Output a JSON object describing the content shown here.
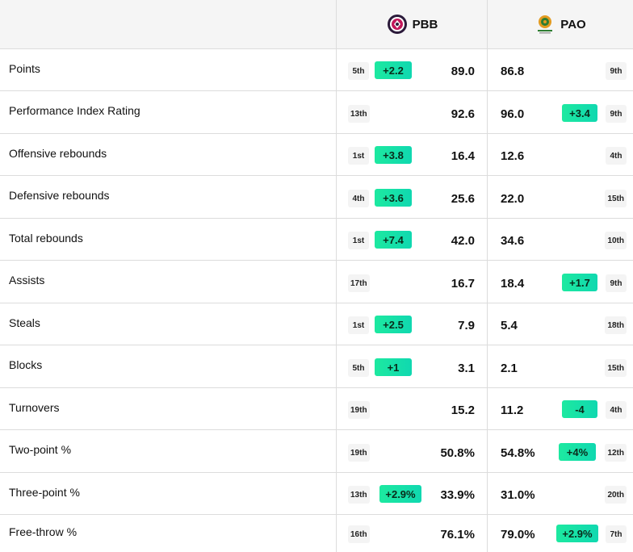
{
  "header": {
    "home_team": "PBB",
    "away_team": "PAO",
    "home_logo": "pbb-logo-icon",
    "away_logo": "pao-logo-icon"
  },
  "colors": {
    "accent_start": "#1de9a0",
    "accent_end": "#10d8b0",
    "header_bg": "#f5f5f5",
    "divider": "#dcdcdc"
  },
  "rows": [
    {
      "label": "Points",
      "pbb_rank": "5th",
      "pbb_diff": "+2.2",
      "pbb_value": "89.0",
      "pao_value": "86.8",
      "pao_diff": "",
      "pao_rank": "9th"
    },
    {
      "label": "Performance Index Rating",
      "pbb_rank": "13th",
      "pbb_diff": "",
      "pbb_value": "92.6",
      "pao_value": "96.0",
      "pao_diff": "+3.4",
      "pao_rank": "9th"
    },
    {
      "label": "Offensive rebounds",
      "pbb_rank": "1st",
      "pbb_diff": "+3.8",
      "pbb_value": "16.4",
      "pao_value": "12.6",
      "pao_diff": "",
      "pao_rank": "4th"
    },
    {
      "label": "Defensive rebounds",
      "pbb_rank": "4th",
      "pbb_diff": "+3.6",
      "pbb_value": "25.6",
      "pao_value": "22.0",
      "pao_diff": "",
      "pao_rank": "15th"
    },
    {
      "label": "Total rebounds",
      "pbb_rank": "1st",
      "pbb_diff": "+7.4",
      "pbb_value": "42.0",
      "pao_value": "34.6",
      "pao_diff": "",
      "pao_rank": "10th"
    },
    {
      "label": "Assists",
      "pbb_rank": "17th",
      "pbb_diff": "",
      "pbb_value": "16.7",
      "pao_value": "18.4",
      "pao_diff": "+1.7",
      "pao_rank": "9th"
    },
    {
      "label": "Steals",
      "pbb_rank": "1st",
      "pbb_diff": "+2.5",
      "pbb_value": "7.9",
      "pao_value": "5.4",
      "pao_diff": "",
      "pao_rank": "18th"
    },
    {
      "label": "Blocks",
      "pbb_rank": "5th",
      "pbb_diff": "+1",
      "pbb_value": "3.1",
      "pao_value": "2.1",
      "pao_diff": "",
      "pao_rank": "15th"
    },
    {
      "label": "Turnovers",
      "pbb_rank": "19th",
      "pbb_diff": "",
      "pbb_value": "15.2",
      "pao_value": "11.2",
      "pao_diff": "-4",
      "pao_rank": "4th"
    },
    {
      "label": "Two-point %",
      "pbb_rank": "19th",
      "pbb_diff": "",
      "pbb_value": "50.8%",
      "pao_value": "54.8%",
      "pao_diff": "+4%",
      "pao_rank": "12th"
    },
    {
      "label": "Three-point %",
      "pbb_rank": "13th",
      "pbb_diff": "+2.9%",
      "pbb_value": "33.9%",
      "pao_value": "31.0%",
      "pao_diff": "",
      "pao_rank": "20th"
    },
    {
      "label": "Free-throw %",
      "pbb_rank": "16th",
      "pbb_diff": "",
      "pbb_value": "76.1%",
      "pao_value": "79.0%",
      "pao_diff": "+2.9%",
      "pao_rank": "7th"
    }
  ]
}
